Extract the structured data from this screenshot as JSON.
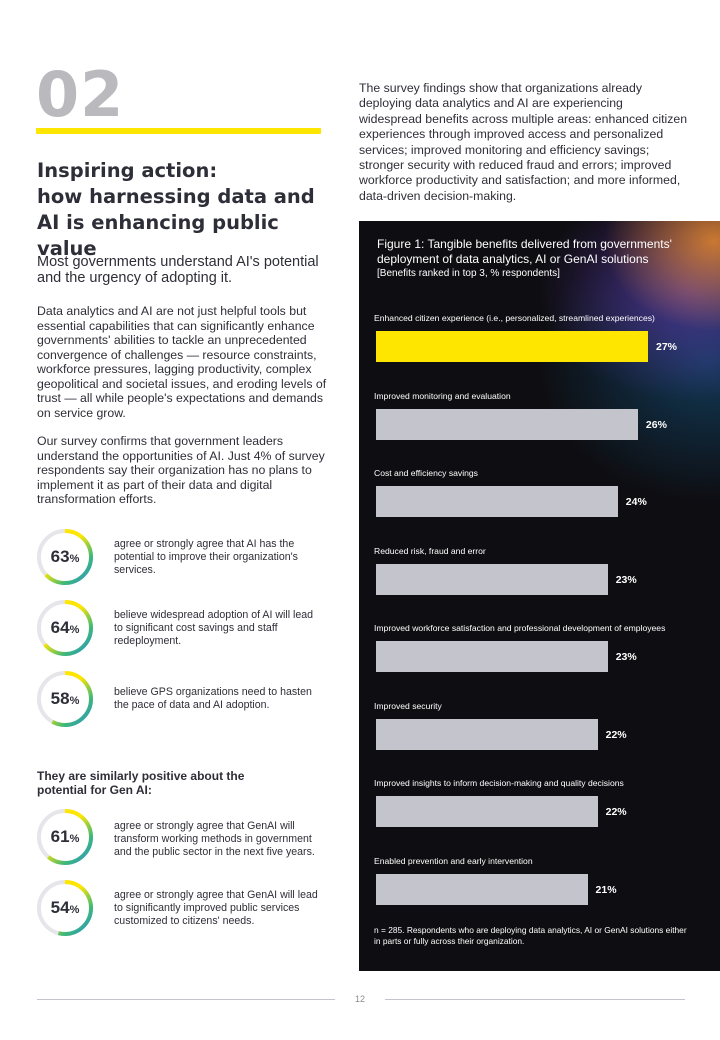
{
  "section": {
    "number": "02",
    "heading_lines": [
      "Inspiring action:",
      "how harnessing data and",
      "AI is enhancing public value"
    ],
    "lead": "Most governments understand AI's potential and the urgency of adopting it.",
    "paragraphs": [
      "Data analytics and AI are not just helpful tools but essential capabilities that can significantly enhance governments' abilities to tackle an unprecedented convergence of challenges — resource constraints, workforce pressures, lagging productivity, complex geopolitical and societal issues, and eroding levels of trust — all while people's expectations and demands on service grow.",
      "Our survey confirms that government leaders understand the opportunities of AI. Just 4% of survey respondents say their organization has no plans to implement it as part of their data and digital transformation efforts."
    ]
  },
  "stats": [
    {
      "value": 63,
      "text": "agree or strongly agree that AI has the potential to improve their organization's services."
    },
    {
      "value": 64,
      "text": "believe widespread adoption of AI will lead to significant cost savings and staff redeployment."
    },
    {
      "value": 58,
      "text": "believe GPS organizations need to hasten the pace of data and AI adoption."
    }
  ],
  "genai": {
    "heading": "They are similarly positive about the potential for Gen AI:",
    "stats": [
      {
        "value": 61,
        "text": "agree or strongly agree that GenAI will transform working methods in government and the public sector in the next five years."
      },
      {
        "value": 54,
        "text": "agree or strongly agree that GenAI will lead to significantly improved public services customized to citizens' needs."
      }
    ]
  },
  "percent_sign": "%",
  "intro": "The survey findings show that organizations already deploying data analytics and AI are experiencing widespread benefits across multiple areas: enhanced citizen experiences through improved access and personalized services; improved monitoring and efficiency savings; stronger security with reduced fraud and errors; improved workforce productivity and satisfaction; and more informed, data-driven decision-making.",
  "chart_data": {
    "type": "bar",
    "orientation": "horizontal",
    "title": "Figure 1: Tangible benefits delivered from governments' deployment of data analytics, AI or GenAI solutions",
    "subtitle": "[Benefits ranked in top 3, % respondents]",
    "categories": [
      "Enhanced citizen experience (i.e., personalized, streamlined experiences)",
      "Improved monitoring and evaluation",
      "Cost and efficiency savings",
      "Reduced risk, fraud and error",
      "Improved workforce satisfaction and professional development of employees",
      "Improved security",
      "Improved insights to inform decision-making and quality decisions",
      "Enabled prevention and early intervention"
    ],
    "values": [
      27,
      26,
      24,
      23,
      23,
      22,
      22,
      21
    ],
    "value_labels": [
      "27%",
      "26%",
      "24%",
      "23%",
      "23%",
      "22%",
      "22%",
      "21%"
    ],
    "unit": "%",
    "note": "n = 285. Respondents who are deploying data analytics, AI or GenAI solutions either in parts or fully across their organization.",
    "colors": {
      "highlight": "#ffe600",
      "bar": "#c4c4cd",
      "background": "#0e0e12"
    }
  },
  "page_number": "12",
  "colors": {
    "accent": "#ffe600",
    "text": "#2e2e38",
    "muted": "#b9b9be"
  }
}
